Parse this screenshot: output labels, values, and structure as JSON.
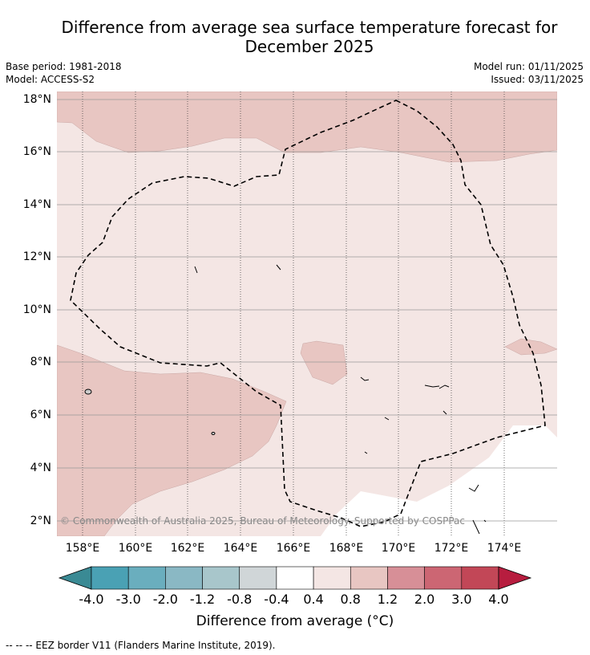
{
  "title": {
    "line1": "Difference from average sea surface temperature forecast for",
    "line2": "December 2025"
  },
  "meta": {
    "base_period": "Base period: 1981-2018",
    "model": "Model: ACCESS-S2",
    "model_run": "Model run: 01/11/2025",
    "issued": "Issued: 03/11/2025"
  },
  "map": {
    "copyright": "© Commonwealth of Australia 2025, Bureau of Meteorology. Supported by COSPPac",
    "lat_labels": [
      "18°N",
      "16°N",
      "14°N",
      "12°N",
      "10°N",
      "8°N",
      "6°N",
      "4°N",
      "2°N"
    ],
    "lon_labels": [
      "158°E",
      "160°E",
      "162°E",
      "164°E",
      "166°E",
      "168°E",
      "170°E",
      "172°E",
      "174°E"
    ],
    "extent": {
      "lon_min": 157,
      "lon_max": 176,
      "lat_min": 1.4,
      "lat_max": 18.3
    },
    "fill_colors": {
      "band_0_4_0_8": "#f4e6e4",
      "band_0_8_1_2": "#e8c6c2",
      "band_neutral": "#ffffff"
    }
  },
  "colorbar": {
    "title": "Difference from average (°C)",
    "tick_labels": [
      "-4.0",
      "-3.0",
      "-2.0",
      "-1.2",
      "-0.8",
      "-0.4",
      "0.4",
      "0.8",
      "1.2",
      "2.0",
      "3.0",
      "4.0"
    ],
    "colors": [
      "#3a8a94",
      "#4aa1b4",
      "#6aaebe",
      "#8ab8c4",
      "#a8c6cb",
      "#d0d6d8",
      "#ffffff",
      "#f4e6e4",
      "#e8c6c2",
      "#d78f97",
      "#cc6673",
      "#c24757",
      "#b71d3f"
    ]
  },
  "legend": {
    "eez": "--  --  -- EEZ border V11 (Flanders Marine Institute, 2019)."
  }
}
